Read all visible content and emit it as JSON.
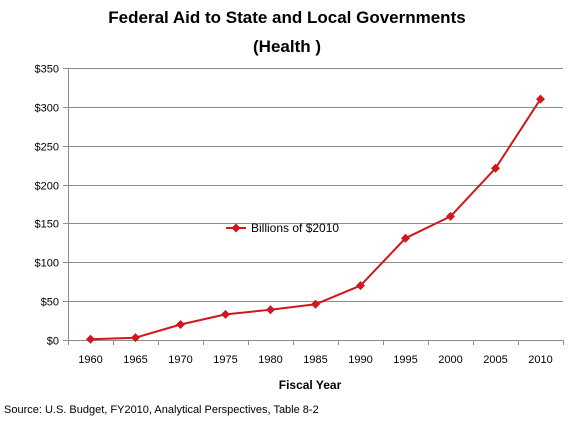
{
  "chart_data": {
    "type": "line",
    "title": "Federal Aid to State and Local Governments",
    "subtitle": "(Health )",
    "xlabel": "Fiscal Year",
    "ylabel": "",
    "categories": [
      "1960",
      "1965",
      "1970",
      "1975",
      "1980",
      "1985",
      "1990",
      "1995",
      "2000",
      "2005",
      "2010"
    ],
    "series": [
      {
        "name": "Billions of $2010",
        "values": [
          1,
          3,
          20,
          33,
          39,
          46,
          70,
          131,
          159,
          221,
          310
        ],
        "color": "#d0161f"
      }
    ],
    "ylim": [
      0,
      350
    ],
    "y_ticks": [
      "$0",
      "$50",
      "$100",
      "$150",
      "$200",
      "$250",
      "$300",
      "$350"
    ],
    "grid": true,
    "legend_position": "inside-center"
  },
  "source_note": "Source: U.S. Budget, FY2010, Analytical Perspectives, Table 8-2"
}
